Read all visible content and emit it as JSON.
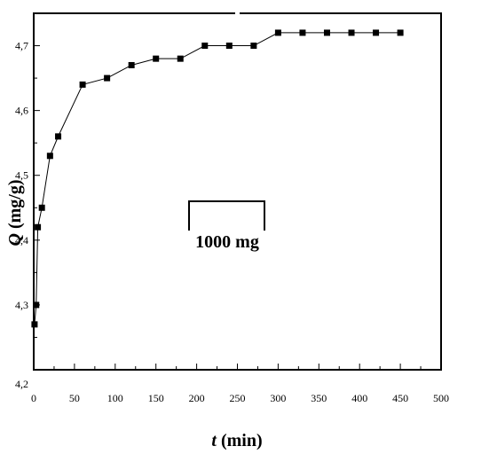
{
  "chart_data": {
    "type": "line",
    "title": "",
    "xlabel_var": "t",
    "xlabel_unit": "(min)",
    "ylabel_var": "Q",
    "ylabel_unit": "(mg/g)",
    "xlim": [
      0,
      500
    ],
    "ylim": [
      4.2,
      4.75
    ],
    "x_ticks": [
      0,
      50,
      100,
      150,
      200,
      250,
      300,
      350,
      400,
      450,
      500
    ],
    "x_tick_labels": [
      "0",
      "50",
      "100",
      "150",
      "200",
      "250",
      "300",
      "350",
      "400",
      "450",
      "500"
    ],
    "y_ticks": [
      4.2,
      4.3,
      4.4,
      4.5,
      4.6,
      4.7
    ],
    "y_tick_labels": [
      "4,2",
      "4,3",
      "4,4",
      "4,5",
      "4,6",
      "4,7"
    ],
    "grid": false,
    "legend_position": "center",
    "series": [
      {
        "name": "1000 mg",
        "marker": "square",
        "color": "#000000",
        "x": [
          1,
          3,
          5,
          10,
          20,
          30,
          60,
          90,
          120,
          150,
          180,
          210,
          240,
          270,
          300,
          330,
          360,
          390,
          420,
          450
        ],
        "y": [
          4.27,
          4.3,
          4.42,
          4.45,
          4.53,
          4.56,
          4.64,
          4.65,
          4.67,
          4.68,
          4.68,
          4.7,
          4.7,
          4.7,
          4.72,
          4.72,
          4.72,
          4.72,
          4.72,
          4.72
        ]
      }
    ]
  }
}
